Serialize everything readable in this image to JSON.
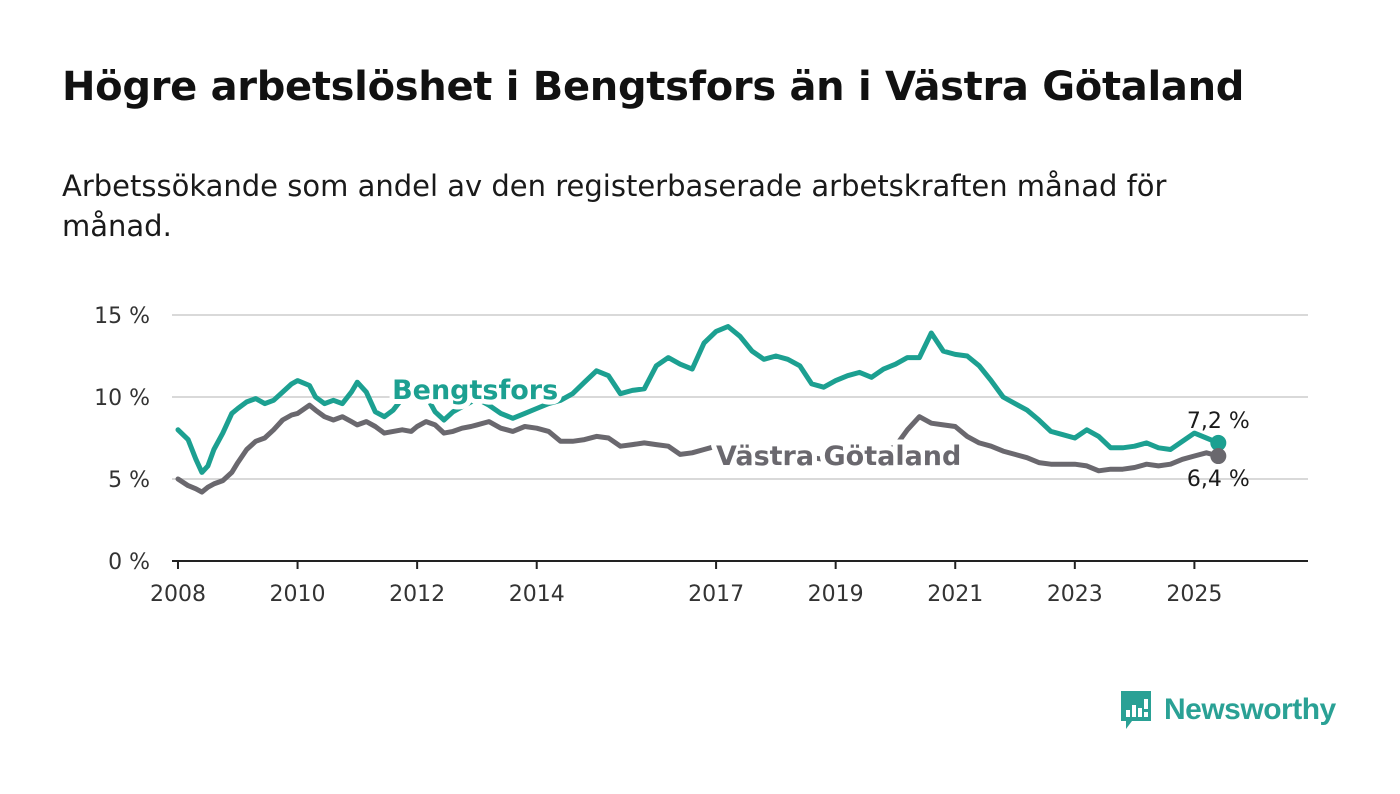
{
  "title": "Högre arbetslöshet i Bengtsfors än i Västra Götaland",
  "subtitle": "Arbetssökande som andel av den registerbaserade arbetskraften månad för månad.",
  "brand": {
    "name": "Newsworthy",
    "icon": "newsworthy-logo-icon",
    "color": "#2aa195"
  },
  "chart_data": {
    "type": "line",
    "title": "Högre arbetslöshet i Bengtsfors än i Västra Götaland",
    "subtitle": "Arbetssökande som andel av den registerbaserade arbetskraften månad för månad.",
    "xlabel": "",
    "ylabel": "",
    "xlim": [
      2007.9,
      2026.9
    ],
    "ylim": [
      0,
      15
    ],
    "x_ticks": [
      {
        "value": 2008.0,
        "label": "2008"
      },
      {
        "value": 2010.0,
        "label": "2010"
      },
      {
        "value": 2012.0,
        "label": "2012"
      },
      {
        "value": 2014.0,
        "label": "2014"
      },
      {
        "value": 2017.0,
        "label": "2017"
      },
      {
        "value": 2019.0,
        "label": "2019"
      },
      {
        "value": 2021.0,
        "label": "2021"
      },
      {
        "value": 2023.0,
        "label": "2023"
      },
      {
        "value": 2025.0,
        "label": "2025"
      }
    ],
    "y_ticks": [
      {
        "value": 0,
        "label": "0 %"
      },
      {
        "value": 5,
        "label": "5 %"
      },
      {
        "value": 10,
        "label": "10 %"
      },
      {
        "value": 15,
        "label": "15 %"
      }
    ],
    "grid": true,
    "legend": "inline labels",
    "series": [
      {
        "name": "Bengtsfors",
        "color": "#1ca091",
        "end_label": "7,2 %",
        "x": [
          2008.0,
          2008.17,
          2008.3,
          2008.4,
          2008.5,
          2008.6,
          2008.75,
          2008.9,
          2009.0,
          2009.15,
          2009.3,
          2009.45,
          2009.6,
          2009.75,
          2009.9,
          2010.0,
          2010.2,
          2010.3,
          2010.45,
          2010.6,
          2010.75,
          2010.9,
          2011.0,
          2011.15,
          2011.3,
          2011.45,
          2011.6,
          2011.75,
          2011.9,
          2012.0,
          2012.15,
          2012.3,
          2012.45,
          2012.6,
          2012.75,
          2012.9,
          2013.0,
          2013.2,
          2013.4,
          2013.6,
          2013.8,
          2014.0,
          2014.2,
          2014.4,
          2014.6,
          2014.8,
          2015.0,
          2015.2,
          2015.4,
          2015.6,
          2015.8,
          2016.0,
          2016.2,
          2016.4,
          2016.6,
          2016.8,
          2017.0,
          2017.2,
          2017.4,
          2017.6,
          2017.8,
          2018.0,
          2018.2,
          2018.4,
          2018.6,
          2018.8,
          2019.0,
          2019.2,
          2019.4,
          2019.6,
          2019.8,
          2020.0,
          2020.2,
          2020.4,
          2020.6,
          2020.8,
          2021.0,
          2021.2,
          2021.4,
          2021.6,
          2021.8,
          2022.0,
          2022.2,
          2022.4,
          2022.6,
          2022.8,
          2023.0,
          2023.2,
          2023.4,
          2023.6,
          2023.8,
          2024.0,
          2024.2,
          2024.4,
          2024.6,
          2024.8,
          2025.0,
          2025.2,
          2025.4
        ],
        "y": [
          8.0,
          7.4,
          6.2,
          5.4,
          5.8,
          6.8,
          7.8,
          9.0,
          9.3,
          9.7,
          9.9,
          9.6,
          9.8,
          10.3,
          10.8,
          11.0,
          10.7,
          10.0,
          9.6,
          9.8,
          9.6,
          10.3,
          10.9,
          10.3,
          9.1,
          8.8,
          9.2,
          9.9,
          10.3,
          10.6,
          10.1,
          9.1,
          8.6,
          9.1,
          9.4,
          9.7,
          9.9,
          9.5,
          9.0,
          8.7,
          9.0,
          9.3,
          9.6,
          9.8,
          10.2,
          10.9,
          11.6,
          11.3,
          10.2,
          10.4,
          10.5,
          11.9,
          12.4,
          12.0,
          11.7,
          13.3,
          14.0,
          14.3,
          13.7,
          12.8,
          12.3,
          12.5,
          12.3,
          11.9,
          10.8,
          10.6,
          11.0,
          11.3,
          11.5,
          11.2,
          11.7,
          12.0,
          12.4,
          12.4,
          13.9,
          12.8,
          12.6,
          12.5,
          11.9,
          11.0,
          10.0,
          9.6,
          9.2,
          8.6,
          7.9,
          7.7,
          7.5,
          8.0,
          7.6,
          6.9,
          6.9,
          7.0,
          7.2,
          6.9,
          6.8,
          7.3,
          7.8,
          7.5,
          7.2
        ]
      },
      {
        "name": "Västra Götaland",
        "color": "#6a686e",
        "end_label": "6,4 %",
        "x": [
          2008.0,
          2008.17,
          2008.3,
          2008.4,
          2008.5,
          2008.6,
          2008.75,
          2008.9,
          2009.0,
          2009.15,
          2009.3,
          2009.45,
          2009.6,
          2009.75,
          2009.9,
          2010.0,
          2010.2,
          2010.3,
          2010.45,
          2010.6,
          2010.75,
          2010.9,
          2011.0,
          2011.15,
          2011.3,
          2011.45,
          2011.6,
          2011.75,
          2011.9,
          2012.0,
          2012.15,
          2012.3,
          2012.45,
          2012.6,
          2012.75,
          2012.9,
          2013.0,
          2013.2,
          2013.4,
          2013.6,
          2013.8,
          2014.0,
          2014.2,
          2014.4,
          2014.6,
          2014.8,
          2015.0,
          2015.2,
          2015.4,
          2015.6,
          2015.8,
          2016.0,
          2016.2,
          2016.4,
          2016.6,
          2016.8,
          2017.0,
          2017.2,
          2017.4,
          2017.6,
          2017.8,
          2018.0,
          2018.2,
          2018.4,
          2018.6,
          2018.8,
          2019.0,
          2019.2,
          2019.4,
          2019.6,
          2019.8,
          2020.0,
          2020.2,
          2020.4,
          2020.6,
          2020.8,
          2021.0,
          2021.2,
          2021.4,
          2021.6,
          2021.8,
          2022.0,
          2022.2,
          2022.4,
          2022.6,
          2022.8,
          2023.0,
          2023.2,
          2023.4,
          2023.6,
          2023.8,
          2024.0,
          2024.2,
          2024.4,
          2024.6,
          2024.8,
          2025.0,
          2025.2,
          2025.4
        ],
        "y": [
          5.0,
          4.6,
          4.4,
          4.2,
          4.5,
          4.7,
          4.9,
          5.4,
          6.0,
          6.8,
          7.3,
          7.5,
          8.0,
          8.6,
          8.9,
          9.0,
          9.5,
          9.2,
          8.8,
          8.6,
          8.8,
          8.5,
          8.3,
          8.5,
          8.2,
          7.8,
          7.9,
          8.0,
          7.9,
          8.2,
          8.5,
          8.3,
          7.8,
          7.9,
          8.1,
          8.2,
          8.3,
          8.5,
          8.1,
          7.9,
          8.2,
          8.1,
          7.9,
          7.3,
          7.3,
          7.4,
          7.6,
          7.5,
          7.0,
          7.1,
          7.2,
          7.1,
          7.0,
          6.5,
          6.6,
          6.8,
          7.0,
          6.8,
          6.5,
          6.4,
          6.2,
          6.1,
          6.1,
          6.2,
          6.3,
          6.2,
          6.5,
          6.5,
          6.6,
          6.6,
          6.6,
          7.0,
          8.0,
          8.8,
          8.4,
          8.3,
          8.2,
          7.6,
          7.2,
          7.0,
          6.7,
          6.5,
          6.3,
          6.0,
          5.9,
          5.9,
          5.9,
          5.8,
          5.5,
          5.6,
          5.6,
          5.7,
          5.9,
          5.8,
          5.9,
          6.2,
          6.4,
          6.6,
          6.4
        ]
      }
    ]
  }
}
